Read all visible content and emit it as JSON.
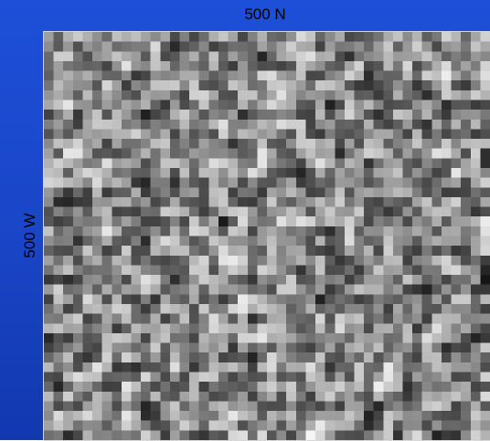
{
  "header": {
    "title": "500 N"
  },
  "side_label": "500 W"
}
